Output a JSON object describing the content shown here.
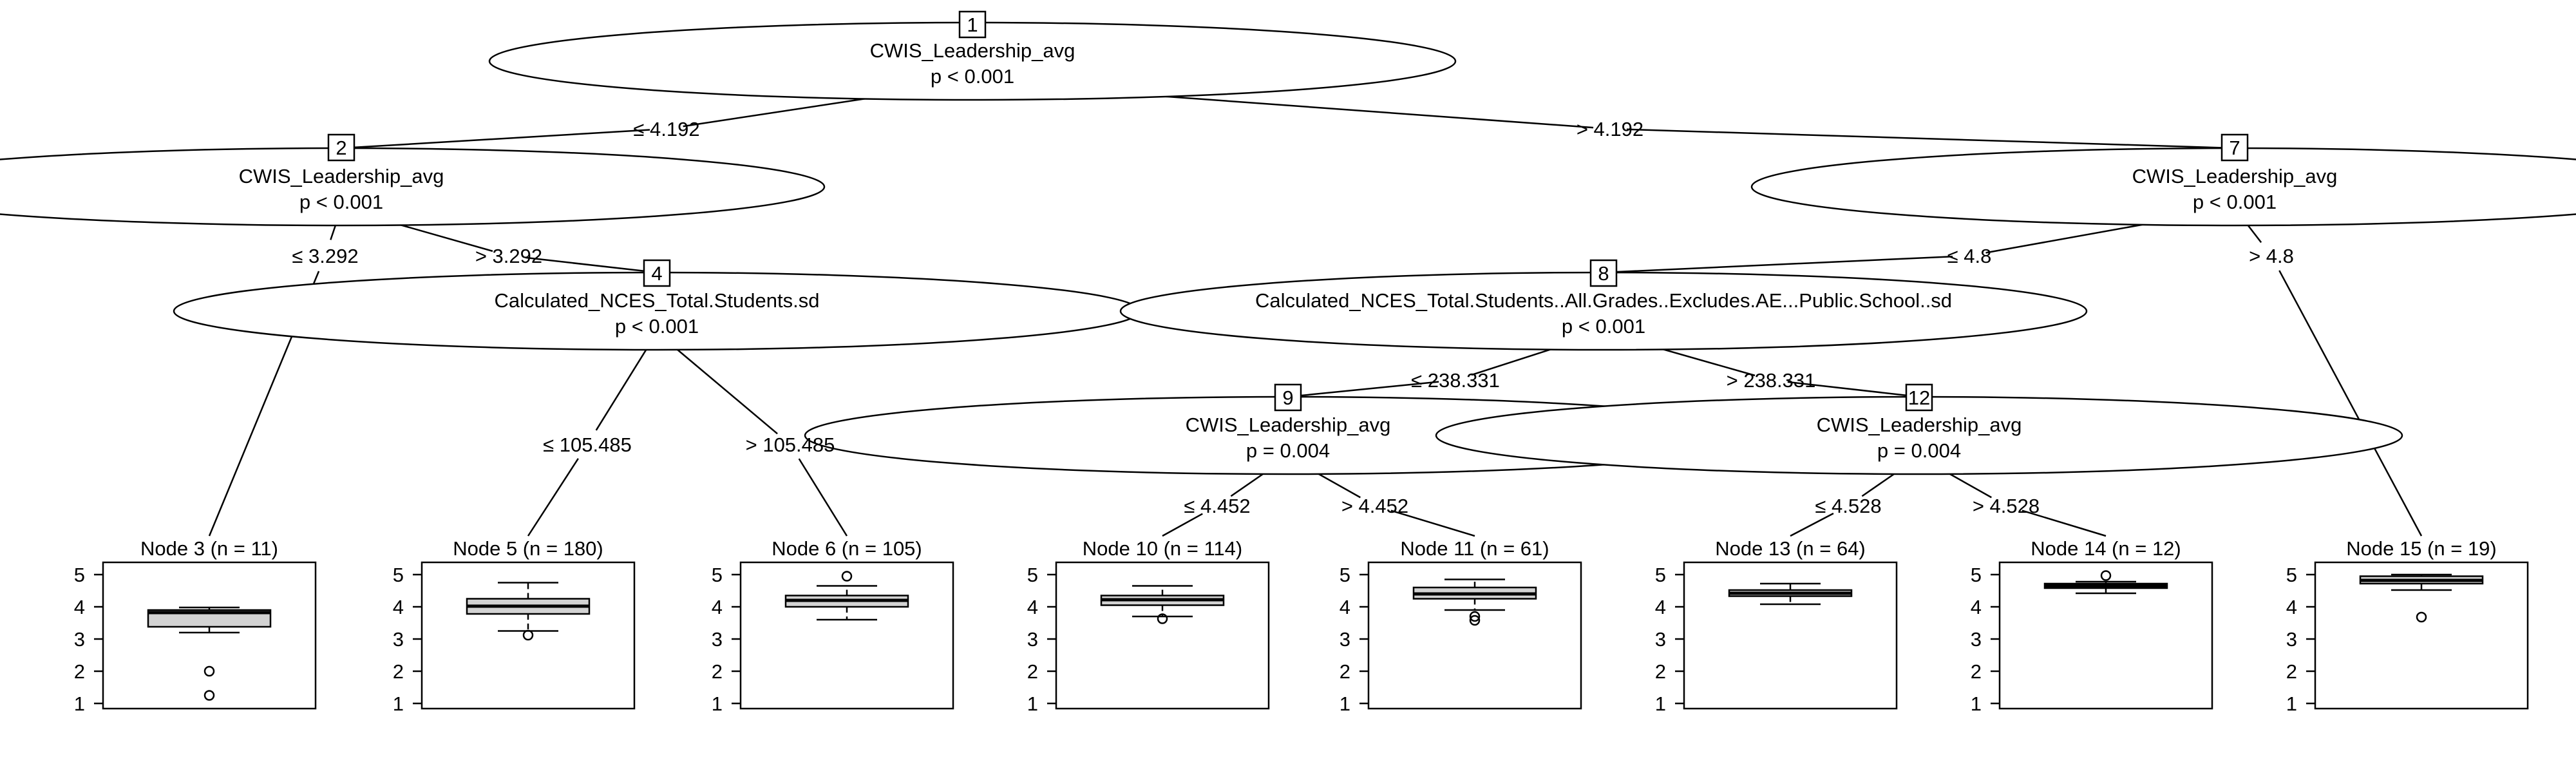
{
  "chart_data": {
    "type": "decision-tree",
    "box_fill": "#d3d3d3",
    "line_color": "#000000",
    "inner_nodes": [
      {
        "id": "1",
        "variable": "CWIS_Leadership_avg",
        "p": "p < 0.001"
      },
      {
        "id": "2",
        "variable": "CWIS_Leadership_avg",
        "p": "p < 0.001"
      },
      {
        "id": "4",
        "variable": "Calculated_NCES_Total.Students.sd",
        "p": "p < 0.001"
      },
      {
        "id": "7",
        "variable": "CWIS_Leadership_avg",
        "p": "p < 0.001"
      },
      {
        "id": "8",
        "variable": "Calculated_NCES_Total.Students..All.Grades..Excludes.AE...Public.School..sd",
        "p": "p < 0.001"
      },
      {
        "id": "9",
        "variable": "CWIS_Leadership_avg",
        "p": "p = 0.004"
      },
      {
        "id": "12",
        "variable": "CWIS_Leadership_avg",
        "p": "p = 0.004"
      }
    ],
    "edges": [
      {
        "from": "1",
        "to": "2",
        "label": "≤ 4.192"
      },
      {
        "from": "1",
        "to": "7",
        "label": "> 4.192"
      },
      {
        "from": "2",
        "to": "3",
        "label": "≤ 3.292"
      },
      {
        "from": "2",
        "to": "4",
        "label": "> 3.292"
      },
      {
        "from": "4",
        "to": "5",
        "label": "≤ 105.485"
      },
      {
        "from": "4",
        "to": "6",
        "label": "> 105.485"
      },
      {
        "from": "7",
        "to": "8",
        "label": "≤ 4.8"
      },
      {
        "from": "7",
        "to": "15",
        "label": "> 4.8"
      },
      {
        "from": "8",
        "to": "9",
        "label": "≤ 238.331"
      },
      {
        "from": "8",
        "to": "12",
        "label": "> 238.331"
      },
      {
        "from": "9",
        "to": "10",
        "label": "≤ 4.452"
      },
      {
        "from": "9",
        "to": "11",
        "label": "> 4.452"
      },
      {
        "from": "12",
        "to": "13",
        "label": "≤ 4.528"
      },
      {
        "from": "12",
        "to": "14",
        "label": "> 4.528"
      }
    ],
    "y_ticks": [
      "1",
      "2",
      "3",
      "4",
      "5"
    ],
    "ylim": [
      1,
      5
    ],
    "terminal_nodes": [
      {
        "id": "3",
        "title": "Node 3 (n = 11)",
        "whisker_low": 3.2,
        "q1": 3.38,
        "median": 3.82,
        "q3": 3.9,
        "whisker_high": 3.98,
        "outliers": [
          2.0,
          1.25
        ]
      },
      {
        "id": "5",
        "title": "Node 5 (n = 180)",
        "whisker_low": 3.25,
        "q1": 3.78,
        "median": 4.02,
        "q3": 4.25,
        "whisker_high": 4.75,
        "outliers": [
          3.12
        ]
      },
      {
        "id": "6",
        "title": "Node 6 (n = 105)",
        "whisker_low": 3.6,
        "q1": 4.0,
        "median": 4.2,
        "q3": 4.35,
        "whisker_high": 4.65,
        "outliers": [
          4.95
        ]
      },
      {
        "id": "10",
        "title": "Node 10 (n = 114)",
        "whisker_low": 3.7,
        "q1": 4.05,
        "median": 4.22,
        "q3": 4.35,
        "whisker_high": 4.65,
        "outliers": [
          3.63
        ]
      },
      {
        "id": "11",
        "title": "Node 11 (n = 61)",
        "whisker_low": 3.9,
        "q1": 4.25,
        "median": 4.4,
        "q3": 4.6,
        "whisker_high": 4.85,
        "outliers": [
          3.7,
          3.58
        ]
      },
      {
        "id": "13",
        "title": "Node 13 (n = 64)",
        "whisker_low": 4.08,
        "q1": 4.33,
        "median": 4.42,
        "q3": 4.52,
        "whisker_high": 4.72,
        "outliers": []
      },
      {
        "id": "14",
        "title": "Node 14 (n = 12)",
        "whisker_low": 4.42,
        "q1": 4.58,
        "median": 4.65,
        "q3": 4.72,
        "whisker_high": 4.78,
        "outliers": [
          4.97
        ]
      },
      {
        "id": "15",
        "title": "Node 15 (n = 19)",
        "whisker_low": 4.52,
        "q1": 4.72,
        "median": 4.82,
        "q3": 4.95,
        "whisker_high": 5.0,
        "outliers": [
          3.68
        ]
      }
    ]
  }
}
